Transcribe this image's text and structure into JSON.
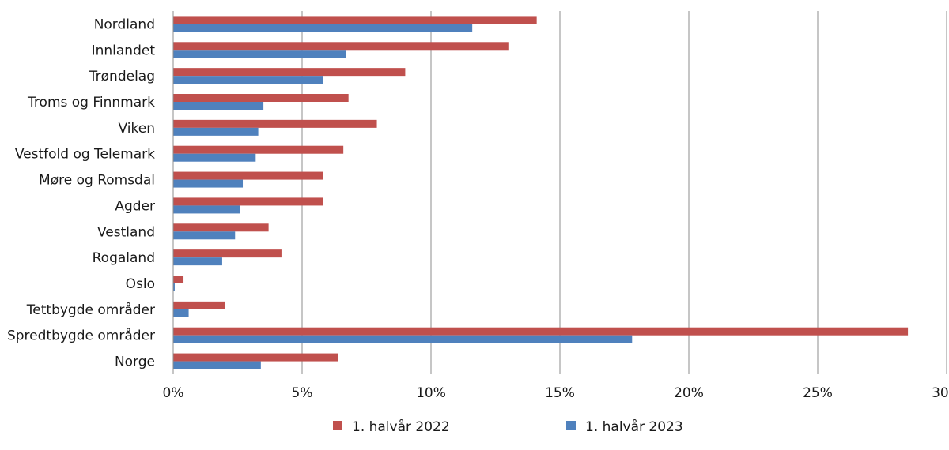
{
  "chart_data": {
    "type": "bar",
    "orientation": "horizontal",
    "categories": [
      "Nordland",
      "Innlandet",
      "Trøndelag",
      "Troms og Finnmark",
      "Viken",
      "Vestfold og Telemark",
      "Møre og Romsdal",
      "Agder",
      "Vestland",
      "Rogaland",
      "Oslo",
      "Tettbygde områder",
      "Spredtbygde områder",
      "Norge"
    ],
    "series": [
      {
        "name": "1. halvår 2022",
        "color": "#c0504d",
        "values": [
          14.1,
          13.0,
          9.0,
          6.8,
          7.9,
          6.6,
          5.8,
          5.8,
          3.7,
          4.2,
          0.4,
          2.0,
          28.5,
          6.4
        ]
      },
      {
        "name": "1. halvår 2023",
        "color": "#4f81bd",
        "values": [
          11.6,
          6.7,
          5.8,
          3.5,
          3.3,
          3.2,
          2.7,
          2.6,
          2.4,
          1.9,
          0.06,
          0.6,
          17.8,
          3.4
        ]
      }
    ],
    "xlim": [
      0,
      30
    ],
    "xticks": [
      "0%",
      "5%",
      "10%",
      "15%",
      "20%",
      "25%",
      "30%"
    ],
    "grid": true,
    "legend_position": "bottom"
  }
}
